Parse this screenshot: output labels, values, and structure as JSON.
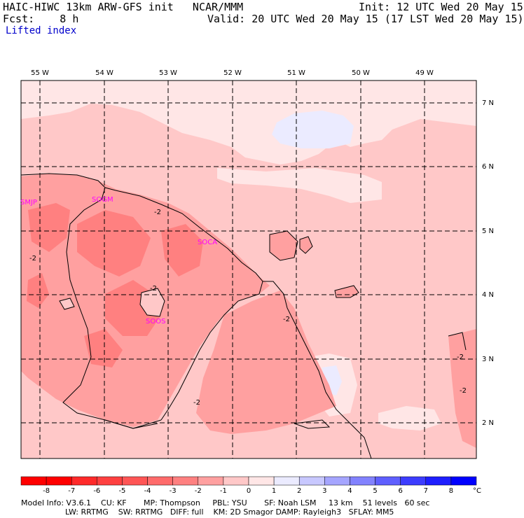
{
  "header": {
    "title": "HAIC-HIWC 13km ARW-GFS init   NCAR/MMM",
    "init": "Init: 12 UTC Wed 20 May 15",
    "fcst": "Fcst:    8 h",
    "valid": "Valid: 20 UTC Wed 20 May 15 (17 LST Wed 20 May 15)",
    "field": "Lifted index"
  },
  "map": {
    "lon_labels": [
      "55 W",
      "54 W",
      "53 W",
      "52 W",
      "51 W",
      "50 W",
      "49 W"
    ],
    "lat_labels": [
      "7 N",
      "6 N",
      "5 N",
      "4 N",
      "3 N",
      "2 N"
    ],
    "stations": [
      "SMJP",
      "SOGM",
      "SOCA",
      "SOOS"
    ],
    "contour_labels": [
      "-2",
      "-2",
      "-2",
      "-2",
      "-2",
      "-2",
      "-2"
    ]
  },
  "colorbar": {
    "ticks": [
      "-8",
      "-7",
      "-6",
      "-5",
      "-4",
      "-3",
      "-2",
      "-1",
      "0",
      "1",
      "2",
      "3",
      "4",
      "5",
      "6",
      "7",
      "8"
    ],
    "unit": "°C",
    "colors": [
      "#ff0000",
      "#ff2a2a",
      "#ff4040",
      "#ff5555",
      "#ff6b6b",
      "#ff8080",
      "#ffa0a0",
      "#ffc8c8",
      "#ffe6e6",
      "#ebebff",
      "#c8c8ff",
      "#a5a5ff",
      "#8282ff",
      "#5f5fff",
      "#3c3cff",
      "#1e1eff",
      "#0000ff"
    ]
  },
  "footer": {
    "line1": "Model Info: V3.6.1    CU: KF       MP: Thompson     PBL: YSU       SF: Noah LSM     13 km    51 levels   60 sec",
    "line2": "                  LW: RRTMG    SW: RRTMG   DIFF: full    KM: 2D Smagor DAMP: Rayleigh3   SFLAY: MM5"
  }
}
